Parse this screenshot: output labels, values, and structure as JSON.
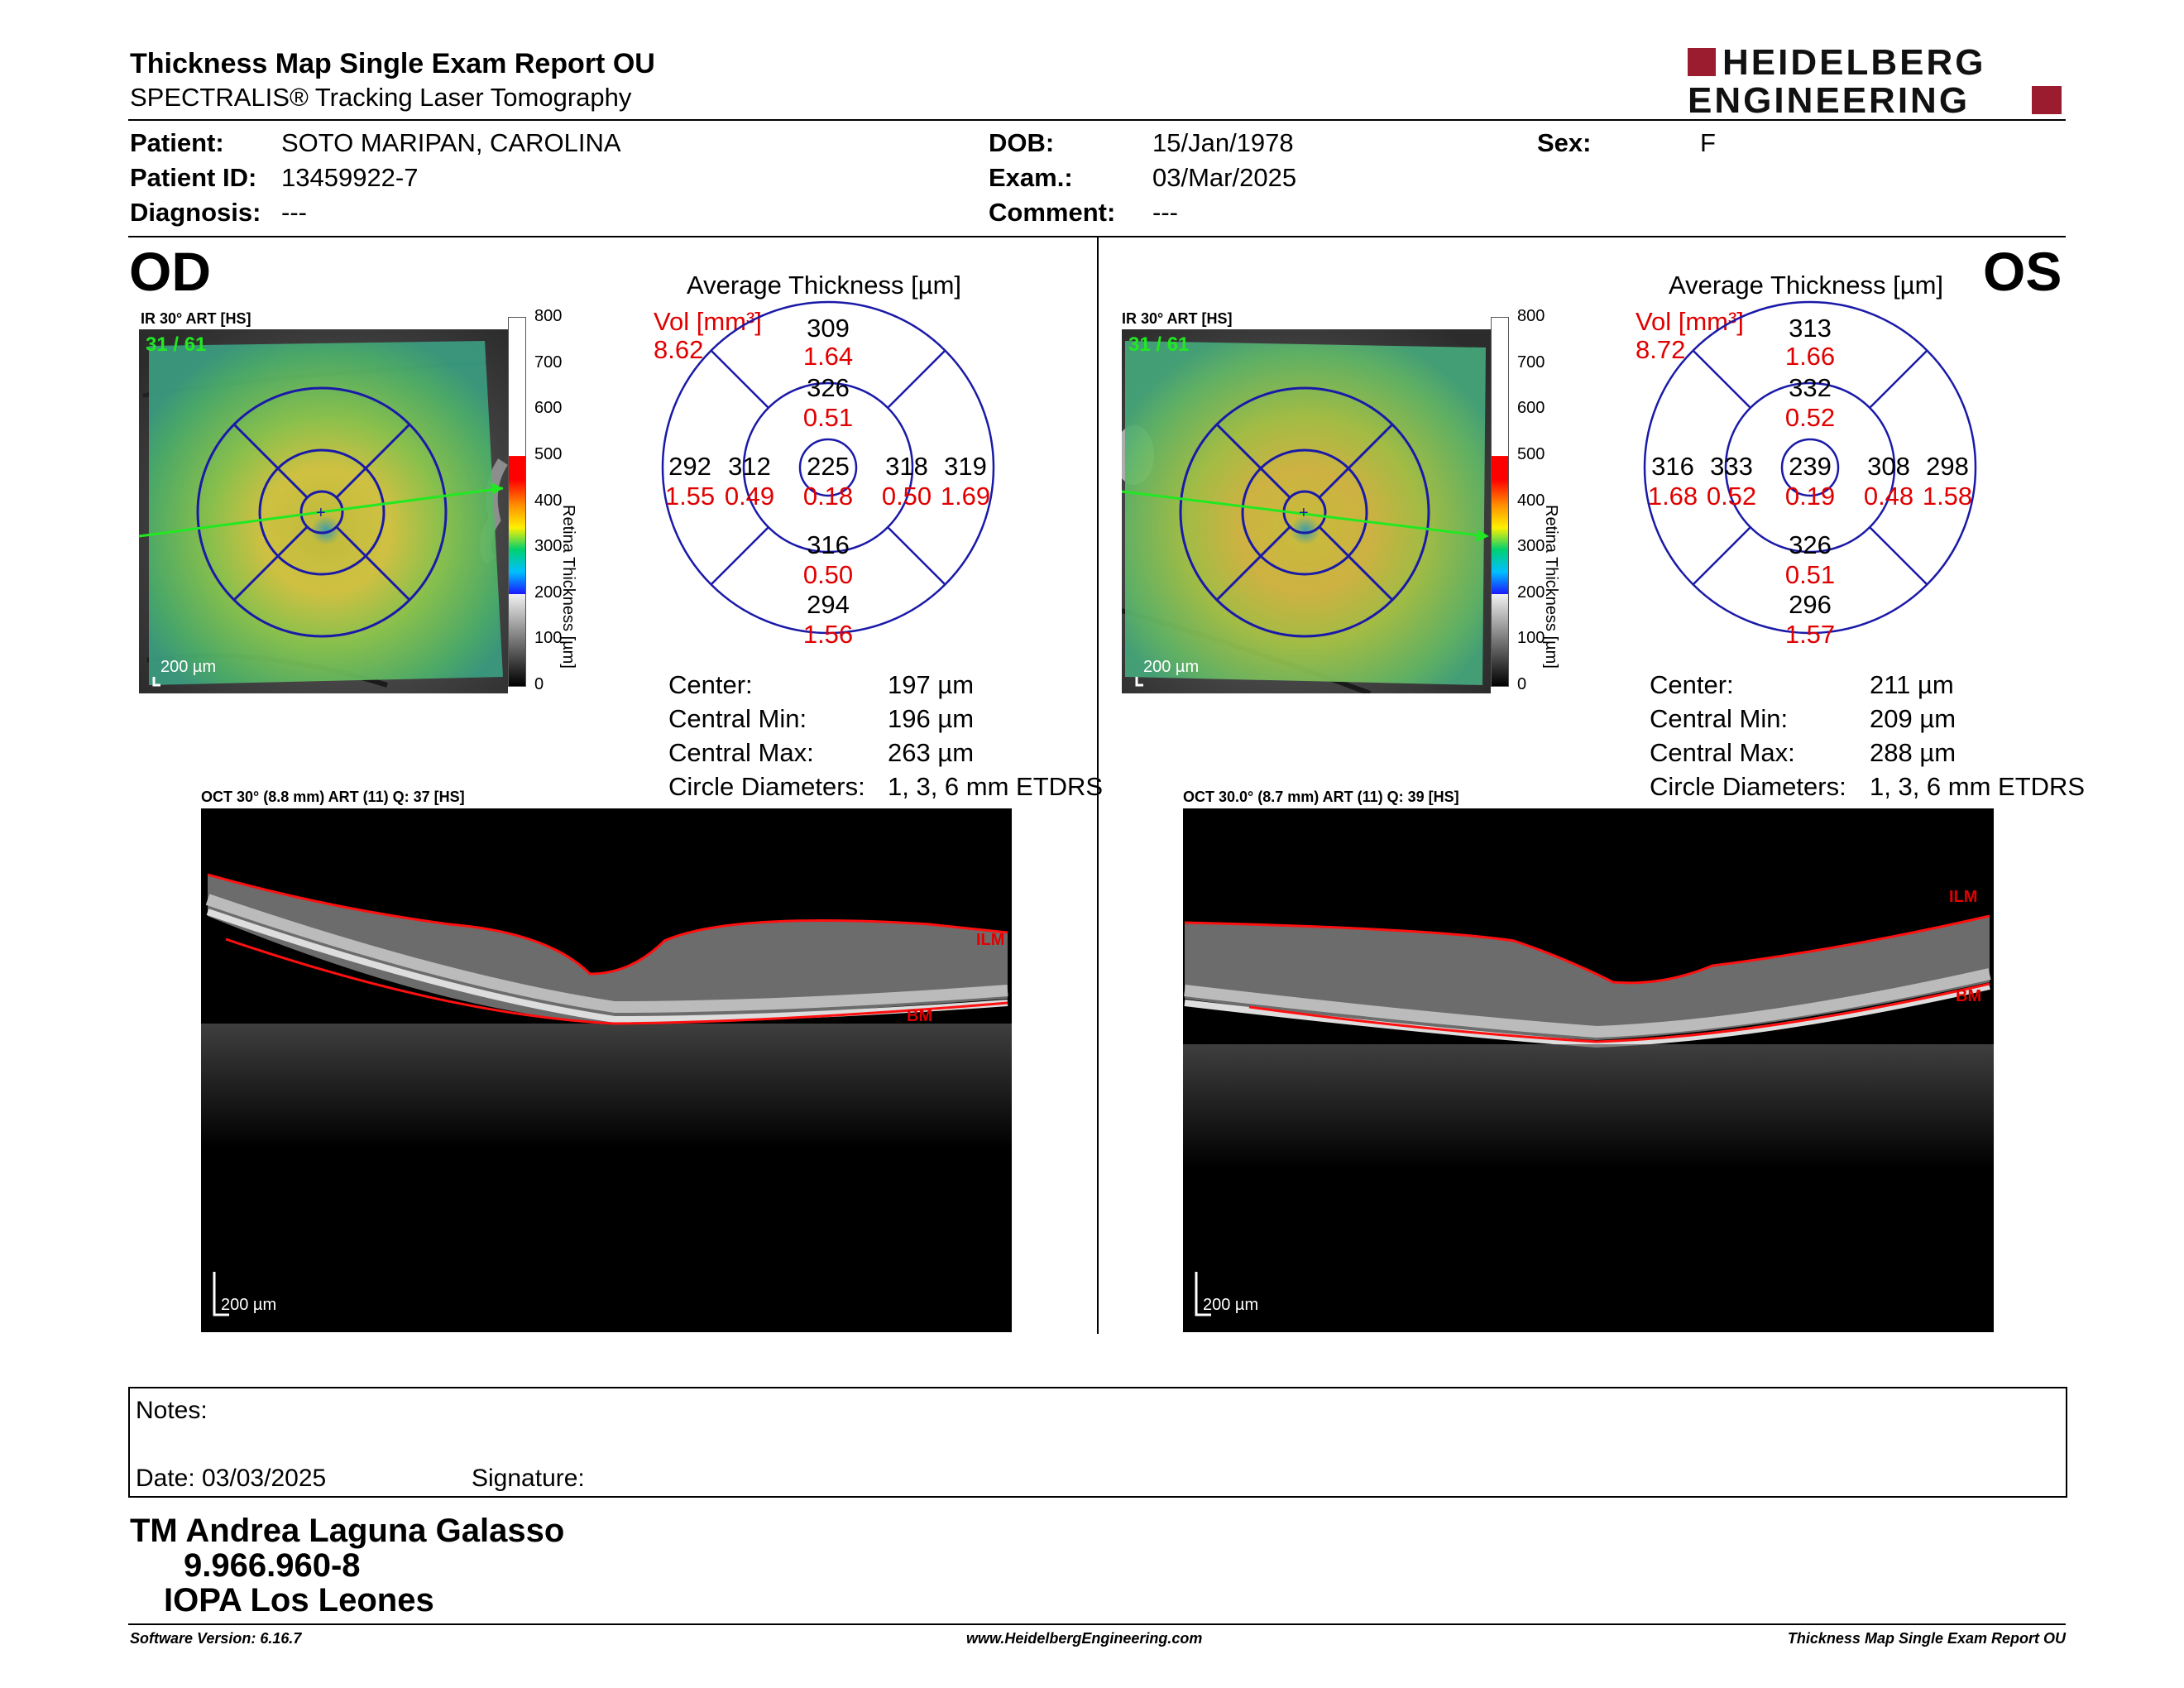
{
  "header": {
    "title": "Thickness Map Single Exam Report OU",
    "subtitle": "SPECTRALIS® Tracking Laser Tomography",
    "logo_line1": "HEIDELBERG",
    "logo_line2": "ENGINEERING"
  },
  "patient": {
    "patient_label": "Patient:",
    "patient_value": "SOTO MARIPAN, CAROLINA",
    "id_label": "Patient ID:",
    "id_value": "13459922-7",
    "diag_label": "Diagnosis:",
    "diag_value": "---",
    "dob_label": "DOB:",
    "dob_value": "15/Jan/1978",
    "exam_label": "Exam.:",
    "exam_value": "03/Mar/2025",
    "comment_label": "Comment:",
    "comment_value": "---",
    "sex_label": "Sex:",
    "sex_value": "F"
  },
  "colorbar": {
    "ticks": [
      "800",
      "700",
      "600",
      "500",
      "400",
      "300",
      "200",
      "100",
      "0"
    ],
    "label": "Retina  Thickness [µm]"
  },
  "od": {
    "eye": "OD",
    "ir_label": "IR 30° ART [HS]",
    "frame": "31 / 61",
    "scale": "200 µm",
    "avg_title": "Average Thickness [µm]",
    "vol_label": "Vol [mm³]",
    "vol_value": "8.62",
    "grid": {
      "sup_outer": "309",
      "sup_outer_vol": "1.64",
      "sup_inner": "326",
      "sup_inner_vol": "0.51",
      "nas_outer": "292",
      "nas_outer_vol": "1.55",
      "nas_inner": "312",
      "nas_inner_vol": "0.49",
      "center": "225",
      "center_vol": "0.18",
      "tmp_inner": "318",
      "tmp_inner_vol": "0.50",
      "tmp_outer": "319",
      "tmp_outer_vol": "1.69",
      "inf_inner": "316",
      "inf_inner_vol": "0.50",
      "inf_outer": "294",
      "inf_outer_vol": "1.56"
    },
    "stats": {
      "center_label": "Center:",
      "center_value": "197 µm",
      "min_label": "Central Min:",
      "min_value": "196 µm",
      "max_label": "Central Max:",
      "max_value": "263 µm",
      "circ_label": "Circle Diameters:",
      "circ_value": "1, 3, 6 mm ETDRS"
    },
    "oct_label": "OCT 30° (8.8 mm) ART (11) Q: 37 [HS]",
    "oct_scale": "200 µm",
    "ilm": "ILM",
    "bm": "BM"
  },
  "os": {
    "eye": "OS",
    "ir_label": "IR 30° ART [HS]",
    "frame": "31 / 61",
    "scale": "200 µm",
    "avg_title": "Average Thickness [µm]",
    "vol_label": "Vol [mm³]",
    "vol_value": "8.72",
    "grid": {
      "sup_outer": "313",
      "sup_outer_vol": "1.66",
      "sup_inner": "332",
      "sup_inner_vol": "0.52",
      "nas_outer": "316",
      "nas_outer_vol": "1.68",
      "nas_inner": "333",
      "nas_inner_vol": "0.52",
      "center": "239",
      "center_vol": "0.19",
      "tmp_inner": "308",
      "tmp_inner_vol": "0.48",
      "tmp_outer": "298",
      "tmp_outer_vol": "1.58",
      "inf_inner": "326",
      "inf_inner_vol": "0.51",
      "inf_outer": "296",
      "inf_outer_vol": "1.57"
    },
    "stats": {
      "center_label": "Center:",
      "center_value": "211 µm",
      "min_label": "Central Min:",
      "min_value": "209 µm",
      "max_label": "Central Max:",
      "max_value": "288 µm",
      "circ_label": "Circle Diameters:",
      "circ_value": "1, 3, 6 mm ETDRS"
    },
    "oct_label": "OCT 30.0° (8.7 mm) ART (11) Q: 39 [HS]",
    "oct_scale": "200 µm",
    "ilm": "ILM",
    "bm": "BM"
  },
  "notes": {
    "notes_label": "Notes:",
    "date_label": "Date: 03/03/2025",
    "signature_label": "Signature:"
  },
  "signature": {
    "line1": "TM Andrea Laguna Galasso",
    "line2": "9.966.960-8",
    "line3": "IOPA Los Leones"
  },
  "footer": {
    "version": "Software Version: 6.16.7",
    "url": "www.HeidelbergEngineering.com",
    "report": "Thickness Map Single Exam Report OU"
  },
  "colors": {
    "accent_red": "#e00000",
    "grid_blue": "#1a1aa8",
    "logo_red": "#9b1c2e",
    "scan_green": "#22e822"
  }
}
